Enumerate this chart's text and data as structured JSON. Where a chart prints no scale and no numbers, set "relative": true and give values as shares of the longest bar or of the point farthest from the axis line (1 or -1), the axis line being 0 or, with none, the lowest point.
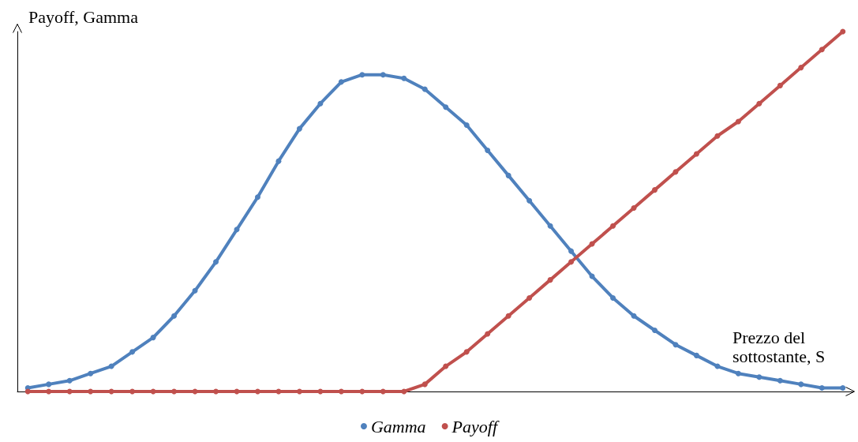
{
  "chart_data": {
    "type": "line",
    "relative": true,
    "ylabel": "Payoff, Gamma",
    "xlabel": "Prezzo del sottostante, S",
    "legend": "bottom",
    "marker": "circle",
    "grid": false,
    "categories": [
      null,
      null,
      null,
      null,
      null,
      null,
      null,
      null,
      null,
      null,
      null,
      null,
      null,
      null,
      null,
      null,
      null,
      null,
      null,
      null,
      null,
      null,
      null,
      null,
      null,
      null,
      null,
      null,
      null,
      null,
      null,
      null,
      null,
      null,
      null,
      null,
      null,
      null,
      null,
      null
    ],
    "series": [
      {
        "name": "Gamma",
        "color": "#4f81bd",
        "values": [
          0.01,
          0.02,
          0.03,
          0.05,
          0.07,
          0.11,
          0.15,
          0.21,
          0.28,
          0.36,
          0.45,
          0.54,
          0.64,
          0.73,
          0.8,
          0.86,
          0.88,
          0.88,
          0.87,
          0.84,
          0.79,
          0.74,
          0.67,
          0.6,
          0.53,
          0.46,
          0.39,
          0.32,
          0.26,
          0.21,
          0.17,
          0.13,
          0.1,
          0.07,
          0.05,
          0.04,
          0.03,
          0.02,
          0.01,
          0.01
        ]
      },
      {
        "name": "Payoff",
        "color": "#c0504d",
        "values": [
          0,
          0,
          0,
          0,
          0,
          0,
          0,
          0,
          0,
          0,
          0,
          0,
          0,
          0,
          0,
          0,
          0,
          0,
          0,
          0.02,
          0.07,
          0.11,
          0.16,
          0.21,
          0.26,
          0.31,
          0.36,
          0.41,
          0.46,
          0.51,
          0.56,
          0.61,
          0.66,
          0.71,
          0.75,
          0.8,
          0.85,
          0.9,
          0.95,
          1
        ]
      }
    ]
  }
}
